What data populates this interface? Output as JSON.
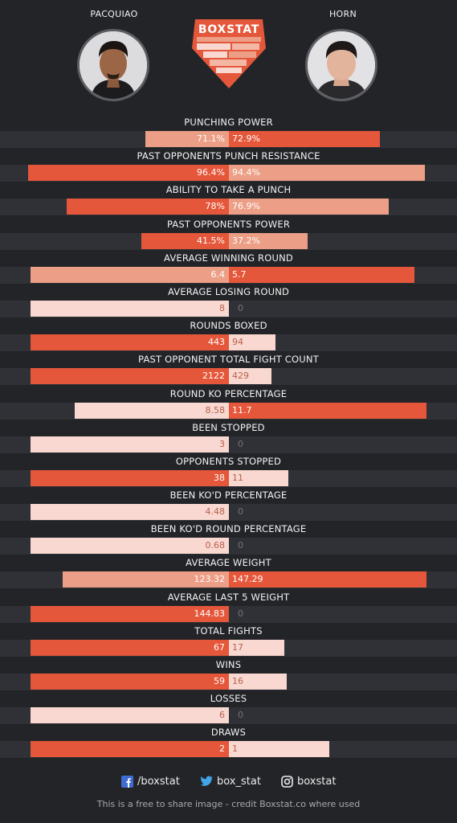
{
  "header": {
    "left_fighter": "PACQUIAO",
    "right_fighter": "HORN",
    "logo_text": "BOXSTAT"
  },
  "colors": {
    "strong": "#e5573a",
    "mid": "#ec9f86",
    "weak": "#f8d8d0",
    "background": "#232428",
    "bar_track": "#303136"
  },
  "chart_data": {
    "type": "bar",
    "orientation": "horizontal-diverging",
    "series": [
      {
        "name": "PACQUIAO",
        "side": "left"
      },
      {
        "name": "HORN",
        "side": "right"
      }
    ],
    "categories": [
      "PUNCHING POWER",
      "PAST OPPONENTS PUNCH RESISTANCE",
      "ABILITY TO TAKE A PUNCH",
      "PAST OPPONENTS POWER",
      "AVERAGE WINNING ROUND",
      "AVERAGE LOSING ROUND",
      "ROUNDS BOXED",
      "PAST OPPONENT TOTAL FIGHT COUNT",
      "ROUND KO PERCENTAGE",
      "BEEN STOPPED",
      "OPPONENTS STOPPED",
      "BEEN KO'D PERCENTAGE",
      "BEEN KO'D ROUND PERCENTAGE",
      "AVERAGE WEIGHT",
      "AVERAGE LAST 5 WEIGHT",
      "TOTAL FIGHTS",
      "WINS",
      "LOSSES",
      "DRAWS"
    ],
    "rows": [
      {
        "title": "PUNCHING POWER",
        "left_label": "71.1%",
        "right_label": "72.9%",
        "left_value": 71.1,
        "right_value": 72.9,
        "left_fill": 0.39,
        "right_fill": 0.71,
        "left_tone": "mid",
        "right_tone": "strong"
      },
      {
        "title": "PAST OPPONENTS PUNCH RESISTANCE",
        "left_label": "96.4%",
        "right_label": "94.4%",
        "left_value": 96.4,
        "right_value": 94.4,
        "left_fill": 0.94,
        "right_fill": 0.92,
        "left_tone": "strong",
        "right_tone": "mid"
      },
      {
        "title": "ABILITY TO TAKE A PUNCH",
        "left_label": "78%",
        "right_label": "76.9%",
        "left_value": 78,
        "right_value": 76.9,
        "left_fill": 0.76,
        "right_fill": 0.75,
        "left_tone": "strong",
        "right_tone": "mid"
      },
      {
        "title": "PAST OPPONENTS POWER",
        "left_label": "41.5%",
        "right_label": "37.2%",
        "left_value": 41.5,
        "right_value": 37.2,
        "left_fill": 0.41,
        "right_fill": 0.37,
        "left_tone": "strong",
        "right_tone": "mid"
      },
      {
        "title": "AVERAGE WINNING ROUND",
        "left_label": "6.4",
        "right_label": "5.7",
        "left_value": 6.4,
        "right_value": 5.7,
        "left_fill": 0.93,
        "right_fill": 0.87,
        "left_tone": "mid",
        "right_tone": "strong"
      },
      {
        "title": "AVERAGE LOSING ROUND",
        "left_label": "8",
        "right_label": "0",
        "left_value": 8,
        "right_value": 0,
        "left_fill": 0.93,
        "right_fill": 0,
        "left_tone": "weak",
        "right_tone": "zero"
      },
      {
        "title": "ROUNDS BOXED",
        "left_label": "443",
        "right_label": "94",
        "left_value": 443,
        "right_value": 94,
        "left_fill": 0.93,
        "right_fill": 0.22,
        "left_tone": "strong",
        "right_tone": "weak"
      },
      {
        "title": "PAST OPPONENT TOTAL FIGHT COUNT",
        "left_label": "2122",
        "right_label": "429",
        "left_value": 2122,
        "right_value": 429,
        "left_fill": 0.93,
        "right_fill": 0.2,
        "left_tone": "strong",
        "right_tone": "weak"
      },
      {
        "title": "ROUND KO PERCENTAGE",
        "left_label": "8.58",
        "right_label": "11.7",
        "left_value": 8.58,
        "right_value": 11.7,
        "left_fill": 0.72,
        "right_fill": 0.93,
        "left_tone": "weak",
        "right_tone": "strong"
      },
      {
        "title": "BEEN STOPPED",
        "left_label": "3",
        "right_label": "0",
        "left_value": 3,
        "right_value": 0,
        "left_fill": 0.93,
        "right_fill": 0,
        "left_tone": "weak",
        "right_tone": "zero"
      },
      {
        "title": "OPPONENTS STOPPED",
        "left_label": "38",
        "right_label": "11",
        "left_value": 38,
        "right_value": 11,
        "left_fill": 0.93,
        "right_fill": 0.28,
        "left_tone": "strong",
        "right_tone": "weak"
      },
      {
        "title": "BEEN KO'D PERCENTAGE",
        "left_label": "4.48",
        "right_label": "0",
        "left_value": 4.48,
        "right_value": 0,
        "left_fill": 0.93,
        "right_fill": 0,
        "left_tone": "weak",
        "right_tone": "zero"
      },
      {
        "title": "BEEN KO'D ROUND PERCENTAGE",
        "left_label": "0.68",
        "right_label": "0",
        "left_value": 0.68,
        "right_value": 0,
        "left_fill": 0.93,
        "right_fill": 0,
        "left_tone": "weak",
        "right_tone": "zero"
      },
      {
        "title": "AVERAGE WEIGHT",
        "left_label": "123.32",
        "right_label": "147.29",
        "left_value": 123.32,
        "right_value": 147.29,
        "left_fill": 0.78,
        "right_fill": 0.93,
        "left_tone": "mid",
        "right_tone": "strong"
      },
      {
        "title": "AVERAGE LAST 5 WEIGHT",
        "left_label": "144.83",
        "right_label": "0",
        "left_value": 144.83,
        "right_value": 0,
        "left_fill": 0.93,
        "right_fill": 0,
        "left_tone": "strong",
        "right_tone": "zero"
      },
      {
        "title": "TOTAL FIGHTS",
        "left_label": "67",
        "right_label": "17",
        "left_value": 67,
        "right_value": 17,
        "left_fill": 0.93,
        "right_fill": 0.26,
        "left_tone": "strong",
        "right_tone": "weak"
      },
      {
        "title": "WINS",
        "left_label": "59",
        "right_label": "16",
        "left_value": 59,
        "right_value": 16,
        "left_fill": 0.93,
        "right_fill": 0.27,
        "left_tone": "strong",
        "right_tone": "weak"
      },
      {
        "title": "LOSSES",
        "left_label": "6",
        "right_label": "0",
        "left_value": 6,
        "right_value": 0,
        "left_fill": 0.93,
        "right_fill": 0,
        "left_tone": "weak",
        "right_tone": "zero"
      },
      {
        "title": "DRAWS",
        "left_label": "2",
        "right_label": "1",
        "left_value": 2,
        "right_value": 1,
        "left_fill": 0.93,
        "right_fill": 0.47,
        "left_tone": "strong",
        "right_tone": "weak"
      }
    ]
  },
  "footer": {
    "facebook": "/boxstat",
    "twitter": "box_stat",
    "instagram": "boxstat",
    "credit": "This is a free to share image - credit Boxstat.co where used"
  }
}
